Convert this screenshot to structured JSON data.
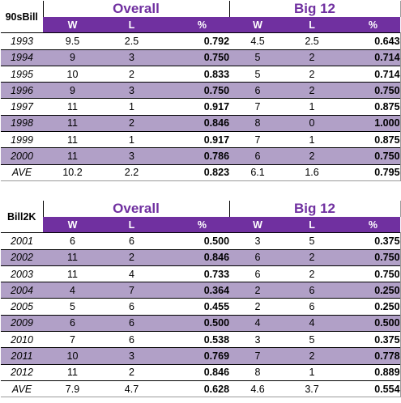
{
  "headers": {
    "group1": "Overall",
    "group2": "Big 12",
    "w": "W",
    "l": "L",
    "pct": "%"
  },
  "tables": [
    {
      "name": "90sBill",
      "rows": [
        {
          "label": "1993",
          "w1": "9.5",
          "l1": "2.5",
          "p1": "0.792",
          "w2": "4.5",
          "l2": "2.5",
          "p2": "0.643",
          "shade": false
        },
        {
          "label": "1994",
          "w1": "9",
          "l1": "3",
          "p1": "0.750",
          "w2": "5",
          "l2": "2",
          "p2": "0.714",
          "shade": true
        },
        {
          "label": "1995",
          "w1": "10",
          "l1": "2",
          "p1": "0.833",
          "w2": "5",
          "l2": "2",
          "p2": "0.714",
          "shade": false
        },
        {
          "label": "1996",
          "w1": "9",
          "l1": "3",
          "p1": "0.750",
          "w2": "6",
          "l2": "2",
          "p2": "0.750",
          "shade": true
        },
        {
          "label": "1997",
          "w1": "11",
          "l1": "1",
          "p1": "0.917",
          "w2": "7",
          "l2": "1",
          "p2": "0.875",
          "shade": false
        },
        {
          "label": "1998",
          "w1": "11",
          "l1": "2",
          "p1": "0.846",
          "w2": "8",
          "l2": "0",
          "p2": "1.000",
          "shade": true
        },
        {
          "label": "1999",
          "w1": "11",
          "l1": "1",
          "p1": "0.917",
          "w2": "7",
          "l2": "1",
          "p2": "0.875",
          "shade": false
        },
        {
          "label": "2000",
          "w1": "11",
          "l1": "3",
          "p1": "0.786",
          "w2": "6",
          "l2": "2",
          "p2": "0.750",
          "shade": true
        }
      ],
      "ave": {
        "label": "AVE",
        "w1": "10.2",
        "l1": "2.2",
        "p1": "0.823",
        "w2": "6.1",
        "l2": "1.6",
        "p2": "0.795"
      }
    },
    {
      "name": "Bill2K",
      "rows": [
        {
          "label": "2001",
          "w1": "6",
          "l1": "6",
          "p1": "0.500",
          "w2": "3",
          "l2": "5",
          "p2": "0.375",
          "shade": false
        },
        {
          "label": "2002",
          "w1": "11",
          "l1": "2",
          "p1": "0.846",
          "w2": "6",
          "l2": "2",
          "p2": "0.750",
          "shade": true
        },
        {
          "label": "2003",
          "w1": "11",
          "l1": "4",
          "p1": "0.733",
          "w2": "6",
          "l2": "2",
          "p2": "0.750",
          "shade": false
        },
        {
          "label": "2004",
          "w1": "4",
          "l1": "7",
          "p1": "0.364",
          "w2": "2",
          "l2": "6",
          "p2": "0.250",
          "shade": true
        },
        {
          "label": "2005",
          "w1": "5",
          "l1": "6",
          "p1": "0.455",
          "w2": "2",
          "l2": "6",
          "p2": "0.250",
          "shade": false
        },
        {
          "label": "2009",
          "w1": "6",
          "l1": "6",
          "p1": "0.500",
          "w2": "4",
          "l2": "4",
          "p2": "0.500",
          "shade": true
        },
        {
          "label": "2010",
          "w1": "7",
          "l1": "6",
          "p1": "0.538",
          "w2": "3",
          "l2": "5",
          "p2": "0.375",
          "shade": false
        },
        {
          "label": "2011",
          "w1": "10",
          "l1": "3",
          "p1": "0.769",
          "w2": "7",
          "l2": "2",
          "p2": "0.778",
          "shade": true
        },
        {
          "label": "2012",
          "w1": "11",
          "l1": "2",
          "p1": "0.846",
          "w2": "8",
          "l2": "1",
          "p2": "0.889",
          "shade": false
        }
      ],
      "ave": {
        "label": "AVE",
        "w1": "7.9",
        "l1": "4.7",
        "p1": "0.628",
        "w2": "4.6",
        "l2": "3.7",
        "p2": "0.554"
      }
    }
  ]
}
